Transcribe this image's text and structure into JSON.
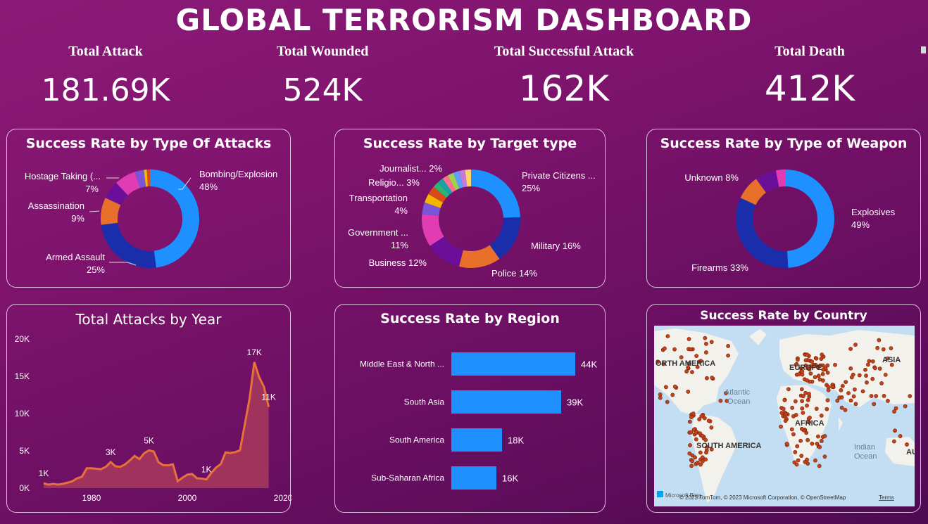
{
  "title": "GLOBAL TERRORISM DASHBOARD",
  "kpis": [
    {
      "label": "Total Attack",
      "value": "181.69K"
    },
    {
      "label": "Total Wounded",
      "value": "524K"
    },
    {
      "label": "Total Successful Attack",
      "value": "162K"
    },
    {
      "label": "Total Death",
      "value": "412K"
    }
  ],
  "colors": {
    "blue": "#1e90ff",
    "navy": "#1a2eab",
    "orange": "#e8702a",
    "purple": "#6b0e9a",
    "pink": "#e23cb4",
    "line": "#e8703a",
    "area": "#a83a5c"
  },
  "chart_data": [
    {
      "type": "pie",
      "title": "Success Rate by Type Of Attacks",
      "slices": [
        {
          "label": "Bombing/Explosion",
          "pct_label": "48%",
          "value": 48,
          "color": "#1e90ff"
        },
        {
          "label": "Armed Assault",
          "pct_label": "25%",
          "value": 25,
          "color": "#1a2eab"
        },
        {
          "label": "Assassination",
          "pct_label": "9%",
          "value": 9,
          "color": "#e8702a"
        },
        {
          "label": "",
          "pct_label": "",
          "value": 6,
          "color": "#6b0e9a"
        },
        {
          "label": "Hostage Taking (...",
          "pct_label": "7%",
          "value": 7,
          "color": "#e23cb4"
        },
        {
          "label": "",
          "pct_label": "",
          "value": 3,
          "color": "#7a55d8"
        },
        {
          "label": "",
          "pct_label": "",
          "value": 1,
          "color": "#f5b400"
        },
        {
          "label": "",
          "pct_label": "",
          "value": 1,
          "color": "#d94a1a"
        }
      ]
    },
    {
      "type": "pie",
      "title": "Success Rate by Target type",
      "slices": [
        {
          "label": "Private Citizens ...",
          "pct_label": "25%",
          "value": 25,
          "color": "#1e90ff"
        },
        {
          "label": "Military 16%",
          "pct_label": "",
          "value": 16,
          "color": "#1a2eab"
        },
        {
          "label": "Police 14%",
          "pct_label": "",
          "value": 14,
          "color": "#e8702a"
        },
        {
          "label": "Business 12%",
          "pct_label": "",
          "value": 12,
          "color": "#6b0e9a"
        },
        {
          "label": "Government ...",
          "pct_label": "11%",
          "value": 11,
          "color": "#e23cb4"
        },
        {
          "label": "Transportation",
          "pct_label": "4%",
          "value": 4,
          "color": "#7a55d8"
        },
        {
          "label": "",
          "pct_label": "",
          "value": 3,
          "color": "#f5b400"
        },
        {
          "label": "Religio... 3%",
          "pct_label": "",
          "value": 3,
          "color": "#d94a1a"
        },
        {
          "label": "",
          "pct_label": "",
          "value": 2,
          "color": "#2bb673"
        },
        {
          "label": "Journalist... 2%",
          "pct_label": "",
          "value": 2,
          "color": "#14a3a3"
        },
        {
          "label": "",
          "pct_label": "",
          "value": 2,
          "color": "#ff6f91"
        },
        {
          "label": "",
          "pct_label": "",
          "value": 2,
          "color": "#9cd34a"
        },
        {
          "label": "",
          "pct_label": "",
          "value": 2,
          "color": "#5aa0ff"
        },
        {
          "label": "",
          "pct_label": "",
          "value": 2,
          "color": "#c27bd6"
        },
        {
          "label": "",
          "pct_label": "",
          "value": 2,
          "color": "#ffd166"
        }
      ]
    },
    {
      "type": "pie",
      "title": "Success Rate by Type of Weapon",
      "slices": [
        {
          "label": "Explosives",
          "pct_label": "49%",
          "value": 49,
          "color": "#1e90ff"
        },
        {
          "label": "Firearms 33%",
          "pct_label": "",
          "value": 33,
          "color": "#1a2eab"
        },
        {
          "label": "Unknown 8%",
          "pct_label": "",
          "value": 8,
          "color": "#e8702a"
        },
        {
          "label": "",
          "pct_label": "",
          "value": 7,
          "color": "#6b0e9a"
        },
        {
          "label": "",
          "pct_label": "",
          "value": 3,
          "color": "#e23cb4"
        }
      ]
    },
    {
      "type": "area",
      "title": "Total Attacks by Year",
      "ylim": [
        0,
        20000
      ],
      "yticks": [
        "0K",
        "5K",
        "10K",
        "15K",
        "20K"
      ],
      "xticks": [
        "1980",
        "2000",
        "2020"
      ],
      "x": [
        1970,
        1971,
        1972,
        1973,
        1974,
        1975,
        1976,
        1977,
        1978,
        1979,
        1980,
        1981,
        1982,
        1983,
        1984,
        1985,
        1986,
        1987,
        1988,
        1989,
        1990,
        1991,
        1992,
        1993,
        1994,
        1995,
        1996,
        1997,
        1998,
        1999,
        2000,
        2001,
        2002,
        2003,
        2004,
        2005,
        2006,
        2007,
        2008,
        2009,
        2010,
        2011,
        2012,
        2013,
        2014,
        2015,
        2016,
        2017
      ],
      "y": [
        650,
        470,
        570,
        470,
        580,
        740,
        920,
        1320,
        1530,
        2660,
        2660,
        2590,
        2540,
        2870,
        3500,
        2920,
        2860,
        3180,
        3720,
        4320,
        3890,
        4680,
        5070,
        4900,
        3460,
        3080,
        3060,
        3200,
        930,
        1400,
        1810,
        1900,
        1330,
        1280,
        1160,
        2020,
        2750,
        3240,
        4800,
        4720,
        4830,
        5070,
        8500,
        12000,
        16900,
        14900,
        13600,
        10900
      ],
      "data_labels": [
        {
          "label": "1K",
          "index": 0
        },
        {
          "label": "3K",
          "index": 14
        },
        {
          "label": "5K",
          "index": 22
        },
        {
          "label": "1K",
          "index": 34
        },
        {
          "label": "17K",
          "index": 44
        },
        {
          "label": "11K",
          "index": 47
        }
      ]
    },
    {
      "type": "bar",
      "title": "Success Rate by Region",
      "categories": [
        "Middle East & North ...",
        "South Asia",
        "South America",
        "Sub-Saharan Africa"
      ],
      "values": [
        44,
        39,
        18,
        16
      ],
      "value_labels": [
        "44K",
        "39K",
        "18K",
        "16K"
      ],
      "xlim": [
        0,
        44
      ]
    }
  ],
  "map": {
    "title": "Success Rate by Country",
    "labels": {
      "north_america": "ORTH AMERICA",
      "europe": "EUROPE",
      "asia": "ASIA",
      "atlantic": "Atlantic",
      "ocean1": "Ocean",
      "africa": "AFRICA",
      "south_america": "SOUTH AMERICA",
      "indian": "Indian",
      "ocean2": "Ocean",
      "edge": "AU"
    },
    "attribution": "© 2023 TomTom, © 2023 Microsoft Corporation, © OpenStreetMap",
    "terms": "Terms",
    "logo": "Microsoft Bing"
  }
}
